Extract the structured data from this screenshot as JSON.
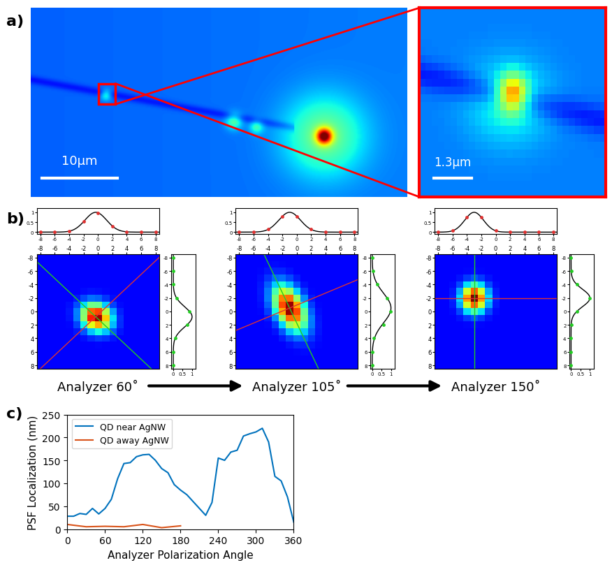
{
  "panel_labels": [
    "a)",
    "b)",
    "c)"
  ],
  "panel_a": {
    "scale_bars": [
      "10μm",
      "1.3μm"
    ]
  },
  "panel_b": {
    "xlim": [
      -8.5,
      8.5
    ],
    "ylim": [
      8.5,
      -8.5
    ],
    "image_ticks": [
      -8,
      -6,
      -4,
      -2,
      0,
      2,
      4,
      6,
      8
    ],
    "profile_lim": [
      -0.1,
      1.2
    ],
    "profile_ticks": [
      0,
      0.5,
      1
    ],
    "profile_positions": [
      -8,
      -6,
      -4,
      -2,
      0,
      2,
      4,
      6,
      8
    ],
    "panels": [
      {
        "label": "Analyzer 60˚",
        "center": [
          -0.3,
          0.8
        ],
        "spot_sigma": [
          1.5,
          1.3
        ],
        "fit_sigma": [
          1.5,
          1.5
        ],
        "line_angles": [
          45,
          135
        ],
        "top_profile": [
          0,
          0,
          0.05,
          0.53,
          0.98,
          0.31,
          0.01,
          0,
          0
        ],
        "right_profile": [
          0,
          0,
          0,
          0.18,
          0.87,
          0.73,
          0.1,
          0,
          0
        ]
      },
      {
        "label": "Analyzer 105˚",
        "center": [
          -1,
          -0.5
        ],
        "spot_sigma": [
          2.4,
          1.3
        ],
        "fit_sigma": [
          1.5,
          2.2
        ],
        "line_angles": [
          66,
          156
        ],
        "top_profile": [
          0,
          0,
          0.14,
          0.8,
          0.8,
          0.14,
          0,
          0,
          0
        ],
        "right_profile": [
          0,
          0.04,
          0.28,
          0.79,
          0.97,
          0.6,
          0.08,
          0,
          0
        ]
      },
      {
        "label": "Analyzer 150˚",
        "center": [
          -3,
          -2
        ],
        "spot_sigma": [
          1.4,
          1.2
        ],
        "fit_sigma": [
          1.3,
          1.3
        ],
        "line_angles": [
          90,
          0
        ],
        "top_profile": [
          0,
          0.07,
          0.74,
          0.74,
          0.07,
          0,
          0,
          0,
          0
        ],
        "right_profile": [
          0,
          0.01,
          0.31,
          1,
          0.31,
          0.01,
          0,
          0,
          0
        ]
      }
    ]
  },
  "chart_data": {
    "type": "line",
    "x_label": "Analyzer Polarization Angle",
    "y_label": "PSF Localization (nm)",
    "xlim": [
      0,
      360
    ],
    "xticks": [
      0,
      60,
      120,
      180,
      240,
      300,
      360
    ],
    "ylim": [
      0,
      250
    ],
    "yticks": [
      0,
      50,
      100,
      150,
      200,
      250
    ],
    "legend": "upper left",
    "series": [
      {
        "name": "QD near AgNW",
        "color": "#0072BD",
        "x": [
          0,
          10,
          20,
          30,
          40,
          50,
          60,
          70,
          80,
          90,
          100,
          110,
          120,
          130,
          140,
          150,
          160,
          170,
          180,
          190,
          200,
          210,
          220,
          230,
          240,
          250,
          260,
          270,
          280,
          290,
          300,
          310,
          320,
          330,
          340,
          350,
          360
        ],
        "values": [
          28,
          28,
          34,
          32,
          45,
          33,
          45,
          65,
          110,
          143,
          145,
          158,
          162,
          163,
          150,
          132,
          123,
          97,
          85,
          75,
          60,
          45,
          30,
          58,
          155,
          150,
          168,
          172,
          203,
          208,
          212,
          220,
          190,
          115,
          105,
          70,
          15
        ]
      },
      {
        "name": "QD away AgNW",
        "color": "#D95319",
        "x": [
          0,
          30,
          60,
          90,
          120,
          150,
          180
        ],
        "values": [
          10,
          5,
          6,
          5,
          10,
          3,
          7
        ]
      }
    ]
  }
}
